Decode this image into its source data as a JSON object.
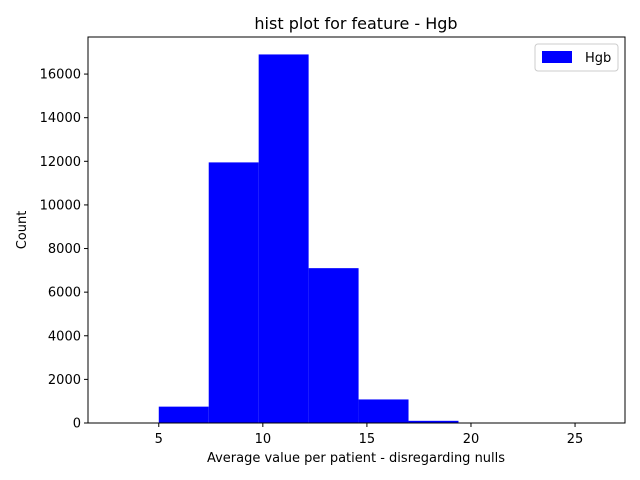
{
  "chart_data": {
    "type": "bar",
    "title": "hist plot for feature -  Hgb",
    "xlabel": "Average value per patient - disregarding nulls",
    "ylabel": "Count",
    "xlim": [
      1.6,
      27.4
    ],
    "ylim": [
      0,
      17700
    ],
    "xticks": [
      5,
      10,
      15,
      20,
      25
    ],
    "yticks": [
      0,
      2000,
      4000,
      6000,
      8000,
      10000,
      12000,
      14000,
      16000
    ],
    "grid": false,
    "legend": "top-right",
    "bins": [
      {
        "start": 3.37,
        "end": 5.0,
        "count": 0
      },
      {
        "start": 5.0,
        "end": 7.4,
        "count": 750
      },
      {
        "start": 7.4,
        "end": 9.8,
        "count": 11950
      },
      {
        "start": 9.8,
        "end": 12.2,
        "count": 16900
      },
      {
        "start": 12.2,
        "end": 14.6,
        "count": 7100
      },
      {
        "start": 14.6,
        "end": 17.0,
        "count": 1080
      },
      {
        "start": 17.0,
        "end": 19.4,
        "count": 100
      },
      {
        "start": 19.4,
        "end": 21.8,
        "count": 10
      },
      {
        "start": 21.8,
        "end": 24.2,
        "count": 5
      },
      {
        "start": 24.2,
        "end": 26.6,
        "count": 3
      }
    ],
    "series": [
      {
        "name": "Hgb",
        "color": "#0000ff"
      }
    ]
  }
}
